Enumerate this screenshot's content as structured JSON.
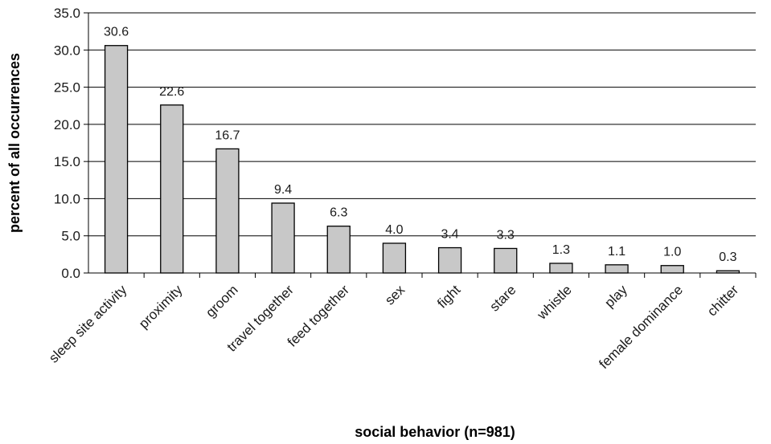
{
  "chart_data": {
    "type": "bar",
    "title": "",
    "xlabel": "social behavior (n=981)",
    "ylabel": "percent of all occurrences",
    "ylim": [
      0,
      35
    ],
    "ytick_step": 5,
    "ytick_labels": [
      "0.0",
      "5.0",
      "10.0",
      "15.0",
      "20.0",
      "25.0",
      "30.0",
      "35.0"
    ],
    "grid": true,
    "legend": "none",
    "bar_color": "#c8c8c8",
    "categories": [
      "sleep site activity",
      "proximity",
      "groom",
      "travel together",
      "feed together",
      "sex",
      "fight",
      "stare",
      "whistle",
      "play",
      "female dominance",
      "chitter"
    ],
    "values": [
      30.6,
      22.6,
      16.7,
      9.4,
      6.3,
      4.0,
      3.4,
      3.3,
      1.3,
      1.1,
      1.0,
      0.3
    ],
    "data_labels": [
      "30.6",
      "22.6",
      "16.7",
      "9.4",
      "6.3",
      "4.0",
      "3.4",
      "3.3",
      "1.3",
      "1.1",
      "1.0",
      "0.3"
    ]
  }
}
